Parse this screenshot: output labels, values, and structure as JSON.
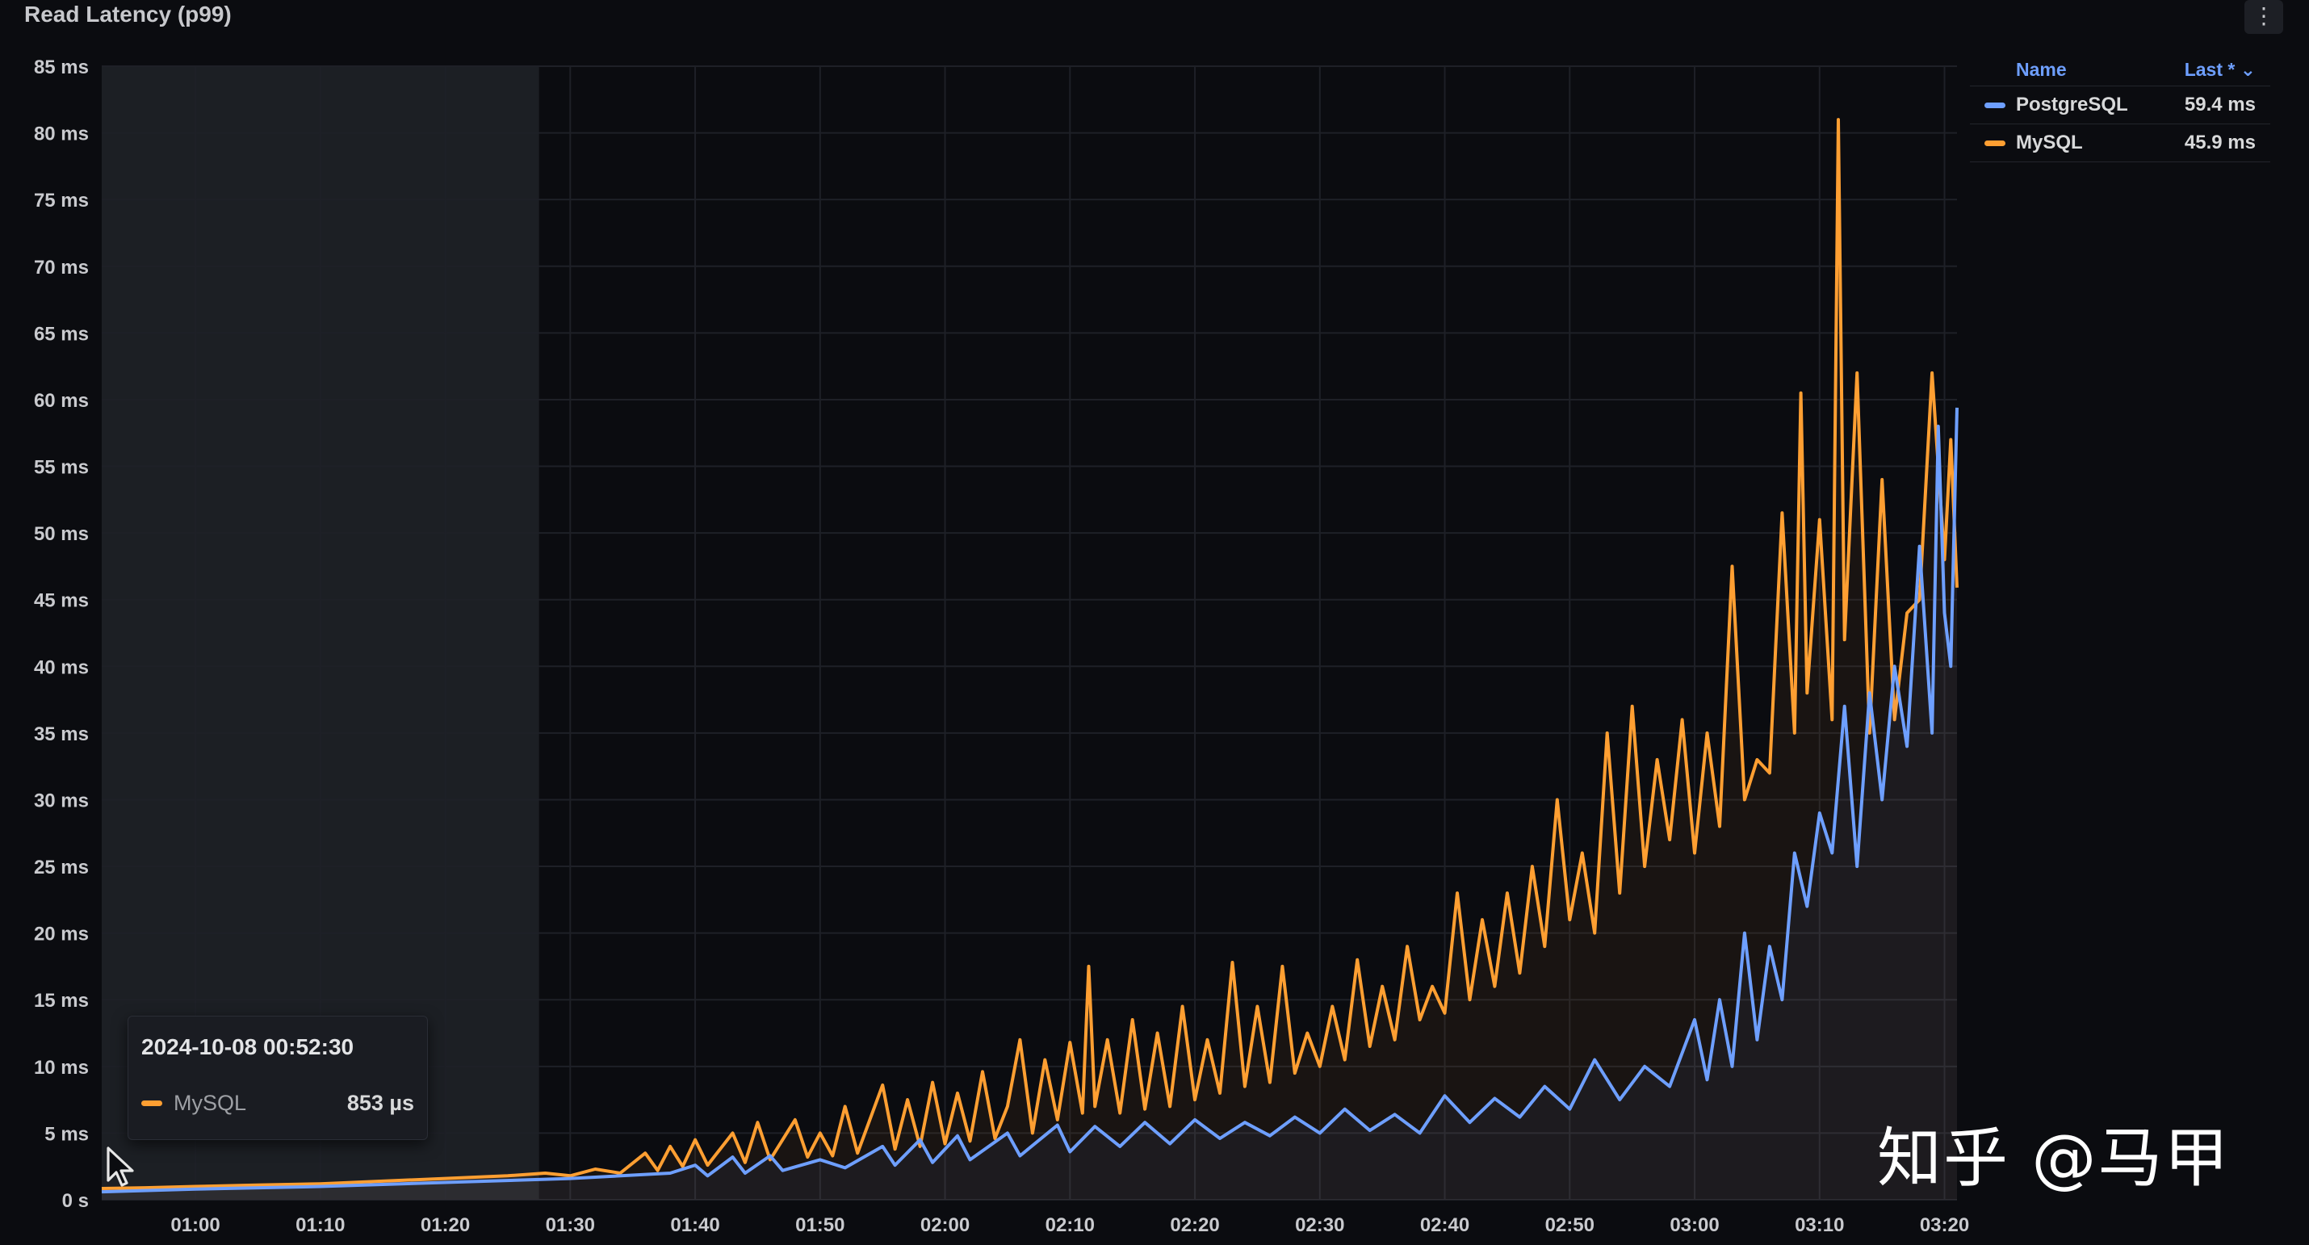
{
  "panel": {
    "title": "Read Latency (p99)",
    "menu_icon": "⋮"
  },
  "legend": {
    "header_name": "Name",
    "header_last": "Last * ⌄",
    "rows": [
      {
        "name": "PostgreSQL",
        "value": "59.4 ms",
        "color": "#6e9fff"
      },
      {
        "name": "MySQL",
        "value": "45.9 ms",
        "color": "#ff9f32"
      }
    ]
  },
  "tooltip": {
    "time": "2024-10-08 00:52:30",
    "series": "MySQL",
    "value": "853 µs",
    "color": "#ff9f32"
  },
  "watermark": "知乎 @马甲",
  "chart_data": {
    "type": "line",
    "title": "Read Latency (p99)",
    "x_start": "00:52:30",
    "x_end": "03:21:00",
    "x_ticks": [
      "01:00",
      "01:10",
      "01:20",
      "01:30",
      "01:40",
      "01:50",
      "02:00",
      "02:10",
      "02:20",
      "02:30",
      "02:40",
      "02:50",
      "03:00",
      "03:10",
      "03:20"
    ],
    "y_ticks": [
      "0 s",
      "5 ms",
      "10 ms",
      "15 ms",
      "20 ms",
      "25 ms",
      "30 ms",
      "35 ms",
      "40 ms",
      "45 ms",
      "50 ms",
      "55 ms",
      "60 ms",
      "65 ms",
      "70 ms",
      "75 ms",
      "80 ms",
      "85 ms"
    ],
    "ylim": [
      0,
      85
    ],
    "grid": true,
    "legend_position": "right",
    "highlight_range": [
      "00:52:30",
      "01:27:30"
    ],
    "series": [
      {
        "name": "MySQL",
        "color": "#ff9f32",
        "points": [
          [
            "00:52:30",
            0.85
          ],
          [
            "00:56:00",
            0.9
          ],
          [
            "01:00:00",
            1.0
          ],
          [
            "01:05:00",
            1.1
          ],
          [
            "01:10:00",
            1.2
          ],
          [
            "01:15:00",
            1.4
          ],
          [
            "01:20:00",
            1.6
          ],
          [
            "01:25:00",
            1.8
          ],
          [
            "01:28:00",
            2.0
          ],
          [
            "01:30:00",
            1.8
          ],
          [
            "01:32:00",
            2.3
          ],
          [
            "01:34:00",
            2.0
          ],
          [
            "01:36:00",
            3.5
          ],
          [
            "01:37:00",
            2.2
          ],
          [
            "01:38:00",
            4.0
          ],
          [
            "01:39:00",
            2.5
          ],
          [
            "01:40:00",
            4.5
          ],
          [
            "01:41:00",
            2.6
          ],
          [
            "01:43:00",
            5.0
          ],
          [
            "01:44:00",
            2.8
          ],
          [
            "01:45:00",
            5.8
          ],
          [
            "01:46:00",
            3.0
          ],
          [
            "01:48:00",
            6.0
          ],
          [
            "01:49:00",
            3.2
          ],
          [
            "01:50:00",
            5.0
          ],
          [
            "01:51:00",
            3.3
          ],
          [
            "01:52:00",
            7.0
          ],
          [
            "01:53:00",
            3.5
          ],
          [
            "01:55:00",
            8.6
          ],
          [
            "01:56:00",
            3.8
          ],
          [
            "01:57:00",
            7.5
          ],
          [
            "01:58:00",
            4.0
          ],
          [
            "01:59:00",
            8.8
          ],
          [
            "02:00:00",
            4.2
          ],
          [
            "02:01:00",
            8.0
          ],
          [
            "02:02:00",
            4.4
          ],
          [
            "02:03:00",
            9.6
          ],
          [
            "02:04:00",
            4.6
          ],
          [
            "02:05:00",
            7.0
          ],
          [
            "02:06:00",
            12.0
          ],
          [
            "02:07:00",
            5.0
          ],
          [
            "02:08:00",
            10.5
          ],
          [
            "02:09:00",
            6.0
          ],
          [
            "02:10:00",
            11.8
          ],
          [
            "02:11:00",
            6.5
          ],
          [
            "02:11:30",
            17.5
          ],
          [
            "02:12:00",
            7.0
          ],
          [
            "02:13:00",
            12.0
          ],
          [
            "02:14:00",
            6.5
          ],
          [
            "02:15:00",
            13.5
          ],
          [
            "02:16:00",
            6.8
          ],
          [
            "02:17:00",
            12.5
          ],
          [
            "02:18:00",
            7.0
          ],
          [
            "02:19:00",
            14.5
          ],
          [
            "02:20:00",
            7.5
          ],
          [
            "02:21:00",
            12.0
          ],
          [
            "02:22:00",
            8.0
          ],
          [
            "02:23:00",
            17.8
          ],
          [
            "02:24:00",
            8.5
          ],
          [
            "02:25:00",
            14.5
          ],
          [
            "02:26:00",
            8.8
          ],
          [
            "02:27:00",
            17.5
          ],
          [
            "02:28:00",
            9.5
          ],
          [
            "02:29:00",
            12.5
          ],
          [
            "02:30:00",
            10.0
          ],
          [
            "02:31:00",
            14.5
          ],
          [
            "02:32:00",
            10.5
          ],
          [
            "02:33:00",
            18.0
          ],
          [
            "02:34:00",
            11.5
          ],
          [
            "02:35:00",
            16.0
          ],
          [
            "02:36:00",
            12.0
          ],
          [
            "02:37:00",
            19.0
          ],
          [
            "02:38:00",
            13.5
          ],
          [
            "02:39:00",
            16.0
          ],
          [
            "02:40:00",
            14.0
          ],
          [
            "02:41:00",
            23.0
          ],
          [
            "02:42:00",
            15.0
          ],
          [
            "02:43:00",
            21.0
          ],
          [
            "02:44:00",
            16.0
          ],
          [
            "02:45:00",
            23.0
          ],
          [
            "02:46:00",
            17.0
          ],
          [
            "02:47:00",
            25.0
          ],
          [
            "02:48:00",
            19.0
          ],
          [
            "02:49:00",
            30.0
          ],
          [
            "02:50:00",
            21.0
          ],
          [
            "02:51:00",
            26.0
          ],
          [
            "02:52:00",
            20.0
          ],
          [
            "02:53:00",
            35.0
          ],
          [
            "02:54:00",
            23.0
          ],
          [
            "02:55:00",
            37.0
          ],
          [
            "02:56:00",
            25.0
          ],
          [
            "02:57:00",
            33.0
          ],
          [
            "02:58:00",
            27.0
          ],
          [
            "02:59:00",
            36.0
          ],
          [
            "03:00:00",
            26.0
          ],
          [
            "03:01:00",
            35.0
          ],
          [
            "03:02:00",
            28.0
          ],
          [
            "03:03:00",
            47.5
          ],
          [
            "03:04:00",
            30.0
          ],
          [
            "03:05:00",
            33.0
          ],
          [
            "03:06:00",
            32.0
          ],
          [
            "03:07:00",
            51.5
          ],
          [
            "03:08:00",
            35.0
          ],
          [
            "03:08:30",
            60.5
          ],
          [
            "03:09:00",
            38.0
          ],
          [
            "03:10:00",
            51.0
          ],
          [
            "03:11:00",
            36.0
          ],
          [
            "03:11:30",
            81.0
          ],
          [
            "03:12:00",
            42.0
          ],
          [
            "03:13:00",
            62.0
          ],
          [
            "03:14:00",
            35.0
          ],
          [
            "03:15:00",
            54.0
          ],
          [
            "03:16:00",
            36.0
          ],
          [
            "03:17:00",
            44.0
          ],
          [
            "03:18:00",
            45.0
          ],
          [
            "03:19:00",
            62.0
          ],
          [
            "03:20:00",
            48.0
          ],
          [
            "03:20:30",
            57.0
          ],
          [
            "03:21:00",
            45.9
          ]
        ]
      },
      {
        "name": "PostgreSQL",
        "color": "#6e9fff",
        "points": [
          [
            "00:52:30",
            0.6
          ],
          [
            "01:00:00",
            0.8
          ],
          [
            "01:10:00",
            1.0
          ],
          [
            "01:20:00",
            1.3
          ],
          [
            "01:30:00",
            1.6
          ],
          [
            "01:38:00",
            2.0
          ],
          [
            "01:40:00",
            2.6
          ],
          [
            "01:41:00",
            1.8
          ],
          [
            "01:43:00",
            3.2
          ],
          [
            "01:44:00",
            2.0
          ],
          [
            "01:46:00",
            3.3
          ],
          [
            "01:47:00",
            2.2
          ],
          [
            "01:50:00",
            3.0
          ],
          [
            "01:52:00",
            2.4
          ],
          [
            "01:55:00",
            4.0
          ],
          [
            "01:56:00",
            2.6
          ],
          [
            "01:58:00",
            4.5
          ],
          [
            "01:59:00",
            2.8
          ],
          [
            "02:01:00",
            4.8
          ],
          [
            "02:02:00",
            3.0
          ],
          [
            "02:05:00",
            5.0
          ],
          [
            "02:06:00",
            3.3
          ],
          [
            "02:09:00",
            5.6
          ],
          [
            "02:10:00",
            3.6
          ],
          [
            "02:12:00",
            5.5
          ],
          [
            "02:14:00",
            4.0
          ],
          [
            "02:16:00",
            5.8
          ],
          [
            "02:18:00",
            4.2
          ],
          [
            "02:20:00",
            6.0
          ],
          [
            "02:22:00",
            4.6
          ],
          [
            "02:24:00",
            5.8
          ],
          [
            "02:26:00",
            4.8
          ],
          [
            "02:28:00",
            6.2
          ],
          [
            "02:30:00",
            5.0
          ],
          [
            "02:32:00",
            6.8
          ],
          [
            "02:34:00",
            5.2
          ],
          [
            "02:36:00",
            6.4
          ],
          [
            "02:38:00",
            5.0
          ],
          [
            "02:40:00",
            7.8
          ],
          [
            "02:42:00",
            5.8
          ],
          [
            "02:44:00",
            7.6
          ],
          [
            "02:46:00",
            6.2
          ],
          [
            "02:48:00",
            8.5
          ],
          [
            "02:50:00",
            6.8
          ],
          [
            "02:52:00",
            10.5
          ],
          [
            "02:54:00",
            7.5
          ],
          [
            "02:56:00",
            10.0
          ],
          [
            "02:58:00",
            8.5
          ],
          [
            "03:00:00",
            13.5
          ],
          [
            "03:01:00",
            9.0
          ],
          [
            "03:02:00",
            15.0
          ],
          [
            "03:03:00",
            10.0
          ],
          [
            "03:04:00",
            20.0
          ],
          [
            "03:05:00",
            12.0
          ],
          [
            "03:06:00",
            19.0
          ],
          [
            "03:07:00",
            15.0
          ],
          [
            "03:08:00",
            26.0
          ],
          [
            "03:09:00",
            22.0
          ],
          [
            "03:10:00",
            29.0
          ],
          [
            "03:11:00",
            26.0
          ],
          [
            "03:12:00",
            37.0
          ],
          [
            "03:13:00",
            25.0
          ],
          [
            "03:14:00",
            38.0
          ],
          [
            "03:15:00",
            30.0
          ],
          [
            "03:16:00",
            40.0
          ],
          [
            "03:17:00",
            34.0
          ],
          [
            "03:18:00",
            49.0
          ],
          [
            "03:19:00",
            35.0
          ],
          [
            "03:19:30",
            58.0
          ],
          [
            "03:20:00",
            44.0
          ],
          [
            "03:20:30",
            40.0
          ],
          [
            "03:21:00",
            59.4
          ]
        ]
      }
    ]
  }
}
